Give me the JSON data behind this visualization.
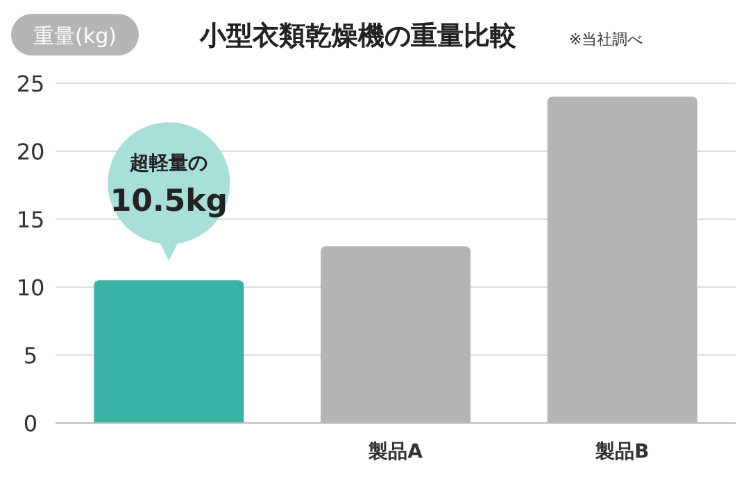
{
  "chart_data": {
    "type": "bar",
    "title": "小型衣類乾燥機の重量比較",
    "ylabel": "重量(kg)",
    "annotations": [
      "※当社調べ",
      "超軽量の"
    ],
    "categories": [
      null,
      "製品A",
      "製品B"
    ],
    "values": [
      10.5,
      13,
      24
    ],
    "colors": [
      "#3ab3a6",
      "#b5b5b5",
      "#b5b5b5"
    ],
    "value_labels": [
      "10.5kg",
      null,
      null
    ],
    "ylim": [
      0,
      25
    ],
    "yticks": [
      0,
      5,
      10,
      15,
      20,
      25
    ],
    "grid": "y"
  }
}
